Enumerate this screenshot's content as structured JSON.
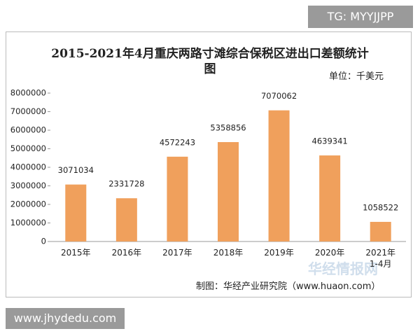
{
  "badge": "TG: MYYJJPP",
  "footer": "www.jhydedu.com",
  "chart_data": {
    "type": "bar",
    "title": "2015-2021年4月重庆两路寸滩综合保税区进出口差额统计图",
    "unit": "单位：千美元",
    "source": "制图：华经产业研究院（www.huaon.com）",
    "watermark": "华经情报网",
    "categories": [
      "2015年",
      "2016年",
      "2017年",
      "2018年",
      "2019年",
      "2020年",
      "2021年1-4月"
    ],
    "values": [
      3071034,
      2331728,
      4572243,
      5358856,
      7070062,
      4639341,
      1058522
    ],
    "color": "#f0a05c",
    "ylim": [
      0,
      8000000
    ],
    "yticks": [
      0,
      1000000,
      2000000,
      3000000,
      4000000,
      5000000,
      6000000,
      7000000,
      8000000
    ]
  }
}
